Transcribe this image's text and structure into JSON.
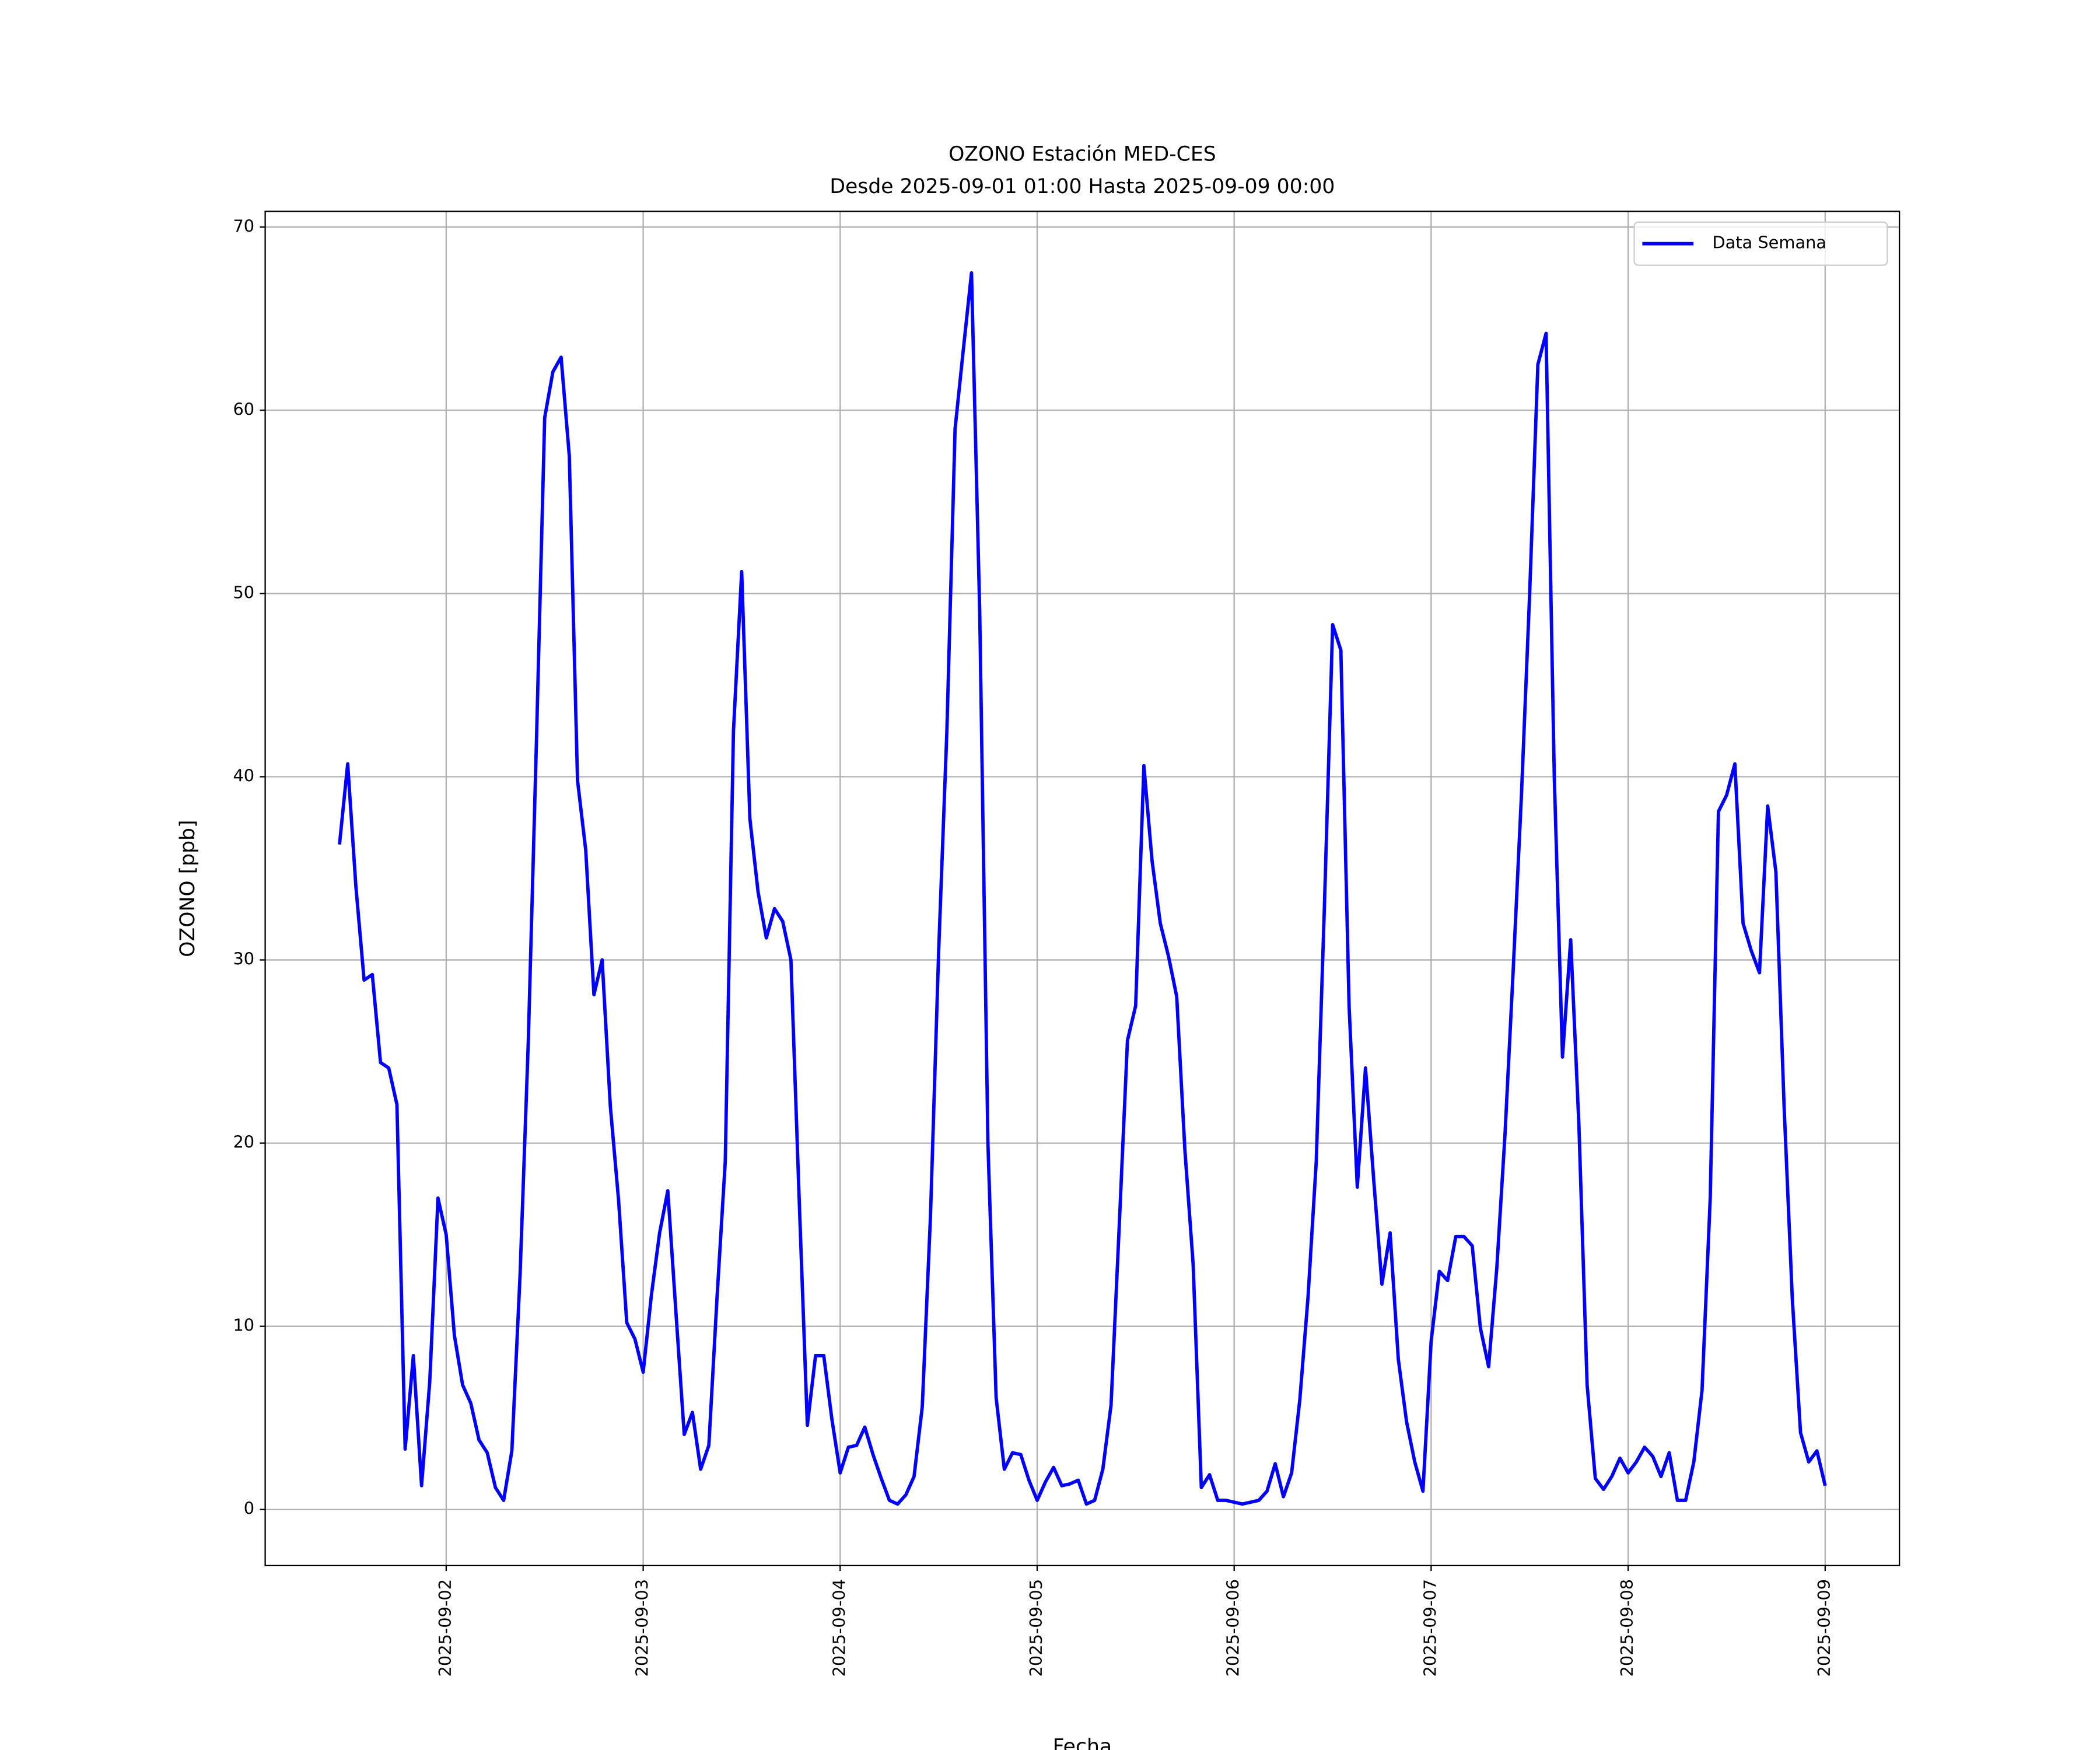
{
  "chart_data": {
    "type": "line",
    "title": "OZONO Estación MED-CES",
    "subtitle": "Desde 2025-09-01 01:00 Hasta 2025-09-09 00:00",
    "xlabel": "Fecha",
    "ylabel": "OZONO [ppb]",
    "grid": true,
    "legend": "upper right",
    "xlim": [
      "2025-09-01 01:57",
      "2025-09-09 09:03"
    ],
    "xticks": [
      "2025-09-02",
      "2025-09-03",
      "2025-09-04",
      "2025-09-05",
      "2025-09-06",
      "2025-09-07",
      "2025-09-08",
      "2025-09-09"
    ],
    "ylim": [
      -3.06,
      70.86
    ],
    "yticks": [
      0,
      10,
      20,
      30,
      40,
      50,
      60,
      70
    ],
    "x": [
      "2025-09-01 11:00",
      "2025-09-01 12:00",
      "2025-09-01 13:00",
      "2025-09-01 14:00",
      "2025-09-01 15:00",
      "2025-09-01 16:00",
      "2025-09-01 17:00",
      "2025-09-01 18:00",
      "2025-09-01 19:00",
      "2025-09-01 20:00",
      "2025-09-01 21:00",
      "2025-09-01 22:00",
      "2025-09-01 23:00",
      "2025-09-02 00:00",
      "2025-09-02 01:00",
      "2025-09-02 02:00",
      "2025-09-02 03:00",
      "2025-09-02 04:00",
      "2025-09-02 05:00",
      "2025-09-02 06:00",
      "2025-09-02 07:00",
      "2025-09-02 08:00",
      "2025-09-02 09:00",
      "2025-09-02 10:00",
      "2025-09-02 11:00",
      "2025-09-02 12:00",
      "2025-09-02 13:00",
      "2025-09-02 14:00",
      "2025-09-02 15:00",
      "2025-09-02 16:00",
      "2025-09-02 17:00",
      "2025-09-02 18:00",
      "2025-09-02 19:00",
      "2025-09-02 20:00",
      "2025-09-02 21:00",
      "2025-09-02 22:00",
      "2025-09-02 23:00",
      "2025-09-03 00:00",
      "2025-09-03 01:00",
      "2025-09-03 02:00",
      "2025-09-03 03:00",
      "2025-09-03 04:00",
      "2025-09-03 05:00",
      "2025-09-03 06:00",
      "2025-09-03 07:00",
      "2025-09-03 08:00",
      "2025-09-03 09:00",
      "2025-09-03 10:00",
      "2025-09-03 11:00",
      "2025-09-03 12:00",
      "2025-09-03 13:00",
      "2025-09-03 14:00",
      "2025-09-03 15:00",
      "2025-09-03 16:00",
      "2025-09-03 17:00",
      "2025-09-03 18:00",
      "2025-09-03 19:00",
      "2025-09-03 20:00",
      "2025-09-03 21:00",
      "2025-09-03 22:00",
      "2025-09-03 23:00",
      "2025-09-04 00:00",
      "2025-09-04 01:00",
      "2025-09-04 02:00",
      "2025-09-04 03:00",
      "2025-09-04 04:00",
      "2025-09-04 05:00",
      "2025-09-04 06:00",
      "2025-09-04 07:00",
      "2025-09-04 08:00",
      "2025-09-04 09:00",
      "2025-09-04 10:00",
      "2025-09-04 11:00",
      "2025-09-04 12:00",
      "2025-09-04 13:00",
      "2025-09-04 14:00",
      "2025-09-04 15:00",
      "2025-09-04 16:00",
      "2025-09-04 17:00",
      "2025-09-04 18:00",
      "2025-09-04 19:00",
      "2025-09-04 20:00",
      "2025-09-04 21:00",
      "2025-09-04 22:00",
      "2025-09-04 23:00",
      "2025-09-05 00:00",
      "2025-09-05 01:00",
      "2025-09-05 02:00",
      "2025-09-05 03:00",
      "2025-09-05 04:00",
      "2025-09-05 05:00",
      "2025-09-05 06:00",
      "2025-09-05 07:00",
      "2025-09-05 08:00",
      "2025-09-05 09:00",
      "2025-09-05 10:00",
      "2025-09-05 11:00",
      "2025-09-05 12:00",
      "2025-09-05 13:00",
      "2025-09-05 14:00",
      "2025-09-05 15:00",
      "2025-09-05 16:00",
      "2025-09-05 17:00",
      "2025-09-05 18:00",
      "2025-09-05 19:00",
      "2025-09-05 20:00",
      "2025-09-05 21:00",
      "2025-09-05 22:00",
      "2025-09-05 23:00",
      "2025-09-06 00:00",
      "2025-09-06 01:00",
      "2025-09-06 02:00",
      "2025-09-06 03:00",
      "2025-09-06 04:00",
      "2025-09-06 05:00",
      "2025-09-06 06:00",
      "2025-09-06 07:00",
      "2025-09-06 08:00",
      "2025-09-06 09:00",
      "2025-09-06 10:00",
      "2025-09-06 11:00",
      "2025-09-06 12:00",
      "2025-09-06 13:00",
      "2025-09-06 14:00",
      "2025-09-06 15:00",
      "2025-09-06 16:00",
      "2025-09-06 17:00",
      "2025-09-06 18:00",
      "2025-09-06 19:00",
      "2025-09-06 20:00",
      "2025-09-06 21:00",
      "2025-09-06 22:00",
      "2025-09-06 23:00",
      "2025-09-07 00:00",
      "2025-09-07 01:00",
      "2025-09-07 02:00",
      "2025-09-07 03:00",
      "2025-09-07 04:00",
      "2025-09-07 05:00",
      "2025-09-07 06:00",
      "2025-09-07 07:00",
      "2025-09-07 08:00",
      "2025-09-07 09:00",
      "2025-09-07 10:00",
      "2025-09-07 11:00",
      "2025-09-07 12:00",
      "2025-09-07 13:00",
      "2025-09-07 14:00",
      "2025-09-07 15:00",
      "2025-09-07 16:00",
      "2025-09-07 17:00",
      "2025-09-07 18:00",
      "2025-09-07 19:00",
      "2025-09-07 20:00",
      "2025-09-07 21:00",
      "2025-09-07 22:00",
      "2025-09-07 23:00",
      "2025-09-08 00:00",
      "2025-09-08 01:00",
      "2025-09-08 02:00",
      "2025-09-08 03:00",
      "2025-09-08 04:00",
      "2025-09-08 05:00",
      "2025-09-08 06:00",
      "2025-09-08 07:00",
      "2025-09-08 08:00",
      "2025-09-08 09:00",
      "2025-09-08 10:00",
      "2025-09-08 11:00",
      "2025-09-08 12:00",
      "2025-09-08 13:00",
      "2025-09-08 14:00",
      "2025-09-08 15:00",
      "2025-09-08 16:00",
      "2025-09-08 17:00",
      "2025-09-08 18:00",
      "2025-09-08 19:00",
      "2025-09-08 20:00",
      "2025-09-08 21:00",
      "2025-09-08 22:00",
      "2025-09-08 23:00",
      "2025-09-09 00:00"
    ],
    "series": [
      {
        "name": "Data Semana",
        "color": "#0000ff",
        "values": [
          36.3,
          40.7,
          34,
          28.9,
          29.2,
          24.4,
          24.1,
          22.1,
          3.3,
          8.4,
          1.3,
          7,
          17,
          15,
          9.5,
          6.8,
          5.8,
          3.8,
          3.1,
          1.2,
          0.5,
          3.2,
          12.8,
          25.5,
          42,
          59.6,
          62.1,
          62.9,
          57.5,
          39.8,
          36,
          28.1,
          30,
          22,
          16.9,
          10.2,
          9.3,
          7.5,
          11.7,
          15.1,
          17.4,
          10.7,
          4.1,
          5.3,
          2.2,
          3.5,
          11.6,
          19,
          42.5,
          51.2,
          37.7,
          33.7,
          31.2,
          32.8,
          32.1,
          30,
          17,
          4.6,
          8.4,
          8.4,
          4.9,
          2,
          3.4,
          3.5,
          4.5,
          3,
          1.7,
          0.5,
          0.3,
          0.8,
          1.8,
          5.6,
          16,
          30.5,
          42.5,
          59,
          63.3,
          67.5,
          49,
          20,
          6.1,
          2.2,
          3.1,
          3,
          1.6,
          0.5,
          1.5,
          2.3,
          1.3,
          1.4,
          1.6,
          0.3,
          0.5,
          2.2,
          5.7,
          15.5,
          25.6,
          27.5,
          40.6,
          35.4,
          32,
          30.2,
          28,
          19.6,
          13.4,
          1.2,
          1.9,
          0.5,
          0.5,
          0.4,
          0.3,
          0.4,
          0.5,
          1,
          2.5,
          0.7,
          2,
          6,
          11.6,
          19,
          33,
          48.3,
          46.9,
          27.5,
          17.6,
          24.1,
          18,
          12.3,
          15.1,
          8.2,
          4.8,
          2.6,
          1,
          9.2,
          13,
          12.5,
          14.9,
          14.9,
          14.4,
          9.9,
          7.8,
          13.2,
          20.5,
          29.5,
          39,
          50,
          62.5,
          64.2,
          40,
          24.7,
          31.1,
          21,
          6.8,
          1.7,
          1.1,
          1.8,
          2.8,
          2,
          2.6,
          3.4,
          2.9,
          1.8,
          3.1,
          0.5,
          0.5,
          2.6,
          6.5,
          17,
          38.1,
          39,
          40.7,
          32,
          30.5,
          29.3,
          38.4,
          34.8,
          22,
          11.5,
          4.2,
          2.6,
          3.2,
          1.3
        ]
      }
    ]
  }
}
